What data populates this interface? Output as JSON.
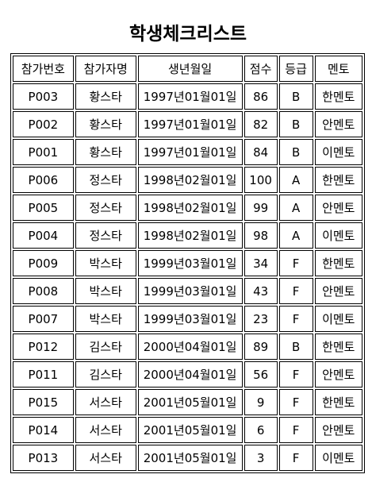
{
  "title": "학생체크리스트",
  "table": {
    "headers": [
      "참가번호",
      "참가자명",
      "생년월일",
      "점수",
      "등급",
      "멘토"
    ],
    "rows": [
      [
        "P003",
        "황스타",
        "1997년01월01일",
        "86",
        "B",
        "한멘토"
      ],
      [
        "P002",
        "황스타",
        "1997년01월01일",
        "82",
        "B",
        "안멘토"
      ],
      [
        "P001",
        "황스타",
        "1997년01월01일",
        "84",
        "B",
        "이멘토"
      ],
      [
        "P006",
        "정스타",
        "1998년02월01일",
        "100",
        "A",
        "한멘토"
      ],
      [
        "P005",
        "정스타",
        "1998년02월01일",
        "99",
        "A",
        "안멘토"
      ],
      [
        "P004",
        "정스타",
        "1998년02월01일",
        "98",
        "A",
        "이멘토"
      ],
      [
        "P009",
        "박스타",
        "1999년03월01일",
        "34",
        "F",
        "한멘토"
      ],
      [
        "P008",
        "박스타",
        "1999년03월01일",
        "43",
        "F",
        "안멘토"
      ],
      [
        "P007",
        "박스타",
        "1999년03월01일",
        "23",
        "F",
        "이멘토"
      ],
      [
        "P012",
        "김스타",
        "2000년04월01일",
        "89",
        "B",
        "한멘토"
      ],
      [
        "P011",
        "김스타",
        "2000년04월01일",
        "56",
        "F",
        "안멘토"
      ],
      [
        "P015",
        "서스타",
        "2001년05월01일",
        "9",
        "F",
        "한멘토"
      ],
      [
        "P014",
        "서스타",
        "2001년05월01일",
        "6",
        "F",
        "안멘토"
      ],
      [
        "P013",
        "서스타",
        "2001년05월01일",
        "3",
        "F",
        "이멘토"
      ]
    ]
  }
}
